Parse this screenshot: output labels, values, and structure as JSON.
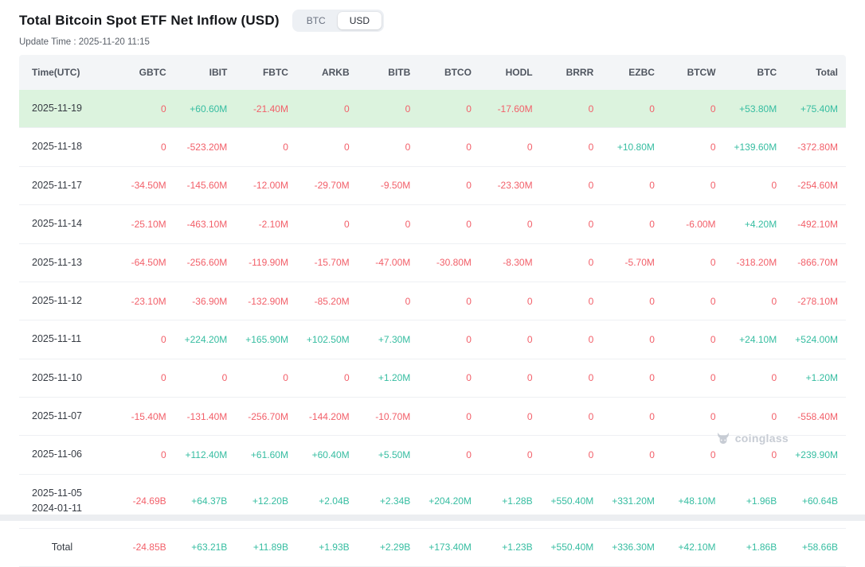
{
  "header": {
    "title": "Total Bitcoin Spot ETF Net Inflow (USD)",
    "update_time": "Update Time : 2025-11-20 11:15",
    "toggle": {
      "options": [
        "BTC",
        "USD"
      ],
      "selected": "USD"
    }
  },
  "colors": {
    "positive": "#36bda1",
    "negative": "#f25f69",
    "highlight_row": "#dcf3de",
    "header_bg": "#f3f5f7"
  },
  "watermark": {
    "text": "coinglass",
    "icon": "coinglass-bull-logo-icon"
  },
  "table": {
    "columns": [
      "Time(UTC)",
      "GBTC",
      "IBIT",
      "FBTC",
      "ARKB",
      "BITB",
      "BTCO",
      "HODL",
      "BRRR",
      "EZBC",
      "BTCW",
      "BTC",
      "Total"
    ],
    "rows": [
      {
        "time": "2025-11-19",
        "highlighted": true,
        "values": [
          "0",
          "+60.60M",
          "-21.40M",
          "0",
          "0",
          "0",
          "-17.60M",
          "0",
          "0",
          "0",
          "+53.80M",
          "+75.40M"
        ]
      },
      {
        "time": "2025-11-18",
        "values": [
          "0",
          "-523.20M",
          "0",
          "0",
          "0",
          "0",
          "0",
          "0",
          "+10.80M",
          "0",
          "+139.60M",
          "-372.80M"
        ]
      },
      {
        "time": "2025-11-17",
        "values": [
          "-34.50M",
          "-145.60M",
          "-12.00M",
          "-29.70M",
          "-9.50M",
          "0",
          "-23.30M",
          "0",
          "0",
          "0",
          "0",
          "-254.60M"
        ]
      },
      {
        "time": "2025-11-14",
        "values": [
          "-25.10M",
          "-463.10M",
          "-2.10M",
          "0",
          "0",
          "0",
          "0",
          "0",
          "0",
          "-6.00M",
          "+4.20M",
          "-492.10M"
        ]
      },
      {
        "time": "2025-11-13",
        "values": [
          "-64.50M",
          "-256.60M",
          "-119.90M",
          "-15.70M",
          "-47.00M",
          "-30.80M",
          "-8.30M",
          "0",
          "-5.70M",
          "0",
          "-318.20M",
          "-866.70M"
        ]
      },
      {
        "time": "2025-11-12",
        "values": [
          "-23.10M",
          "-36.90M",
          "-132.90M",
          "-85.20M",
          "0",
          "0",
          "0",
          "0",
          "0",
          "0",
          "0",
          "-278.10M"
        ]
      },
      {
        "time": "2025-11-11",
        "values": [
          "0",
          "+224.20M",
          "+165.90M",
          "+102.50M",
          "+7.30M",
          "0",
          "0",
          "0",
          "0",
          "0",
          "+24.10M",
          "+524.00M"
        ]
      },
      {
        "time": "2025-11-10",
        "values": [
          "0",
          "0",
          "0",
          "0",
          "+1.20M",
          "0",
          "0",
          "0",
          "0",
          "0",
          "0",
          "+1.20M"
        ]
      },
      {
        "time": "2025-11-07",
        "values": [
          "-15.40M",
          "-131.40M",
          "-256.70M",
          "-144.20M",
          "-10.70M",
          "0",
          "0",
          "0",
          "0",
          "0",
          "0",
          "-558.40M"
        ]
      },
      {
        "time": "2025-11-06",
        "values": [
          "0",
          "+112.40M",
          "+61.60M",
          "+60.40M",
          "+5.50M",
          "0",
          "0",
          "0",
          "0",
          "0",
          "0",
          "+239.90M"
        ]
      },
      {
        "time": "2025-11-05\n2024-01-11",
        "values": [
          "-24.69B",
          "+64.37B",
          "+12.20B",
          "+2.04B",
          "+2.34B",
          "+204.20M",
          "+1.28B",
          "+550.40M",
          "+331.20M",
          "+48.10M",
          "+1.96B",
          "+60.64B"
        ]
      },
      {
        "time": "Total",
        "is_total": true,
        "values": [
          "-24.85B",
          "+63.21B",
          "+11.89B",
          "+1.93B",
          "+2.29B",
          "+173.40M",
          "+1.23B",
          "+550.40M",
          "+336.30M",
          "+42.10M",
          "+1.86B",
          "+58.66B"
        ]
      }
    ]
  }
}
